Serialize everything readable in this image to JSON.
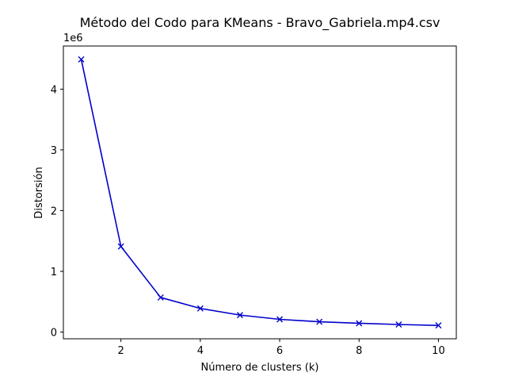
{
  "chart_data": {
    "type": "line",
    "title": "Método del Codo para KMeans - Bravo_Gabriela.mp4.csv",
    "xlabel": "Número de clusters (k)",
    "ylabel": "Distorsión",
    "y_offset_label": "1e6",
    "x": [
      1,
      2,
      3,
      4,
      5,
      6,
      7,
      8,
      9,
      10
    ],
    "series": [
      {
        "name": "Distorsión",
        "values": [
          4490000,
          1410000,
          570000,
          390000,
          280000,
          210000,
          170000,
          145000,
          125000,
          110000
        ],
        "color": "#0000cc",
        "marker": "x"
      }
    ],
    "xlim": [
      0.55,
      10.45
    ],
    "ylim": [
      -110000,
      4710000
    ],
    "x_ticks": [
      2,
      4,
      6,
      8,
      10
    ],
    "x_tick_labels": [
      "2",
      "4",
      "6",
      "8",
      "10"
    ],
    "y_ticks": [
      0,
      1000000,
      2000000,
      3000000,
      4000000
    ],
    "y_tick_labels": [
      "0",
      "1",
      "2",
      "3",
      "4"
    ],
    "grid": false,
    "legend": false
  }
}
